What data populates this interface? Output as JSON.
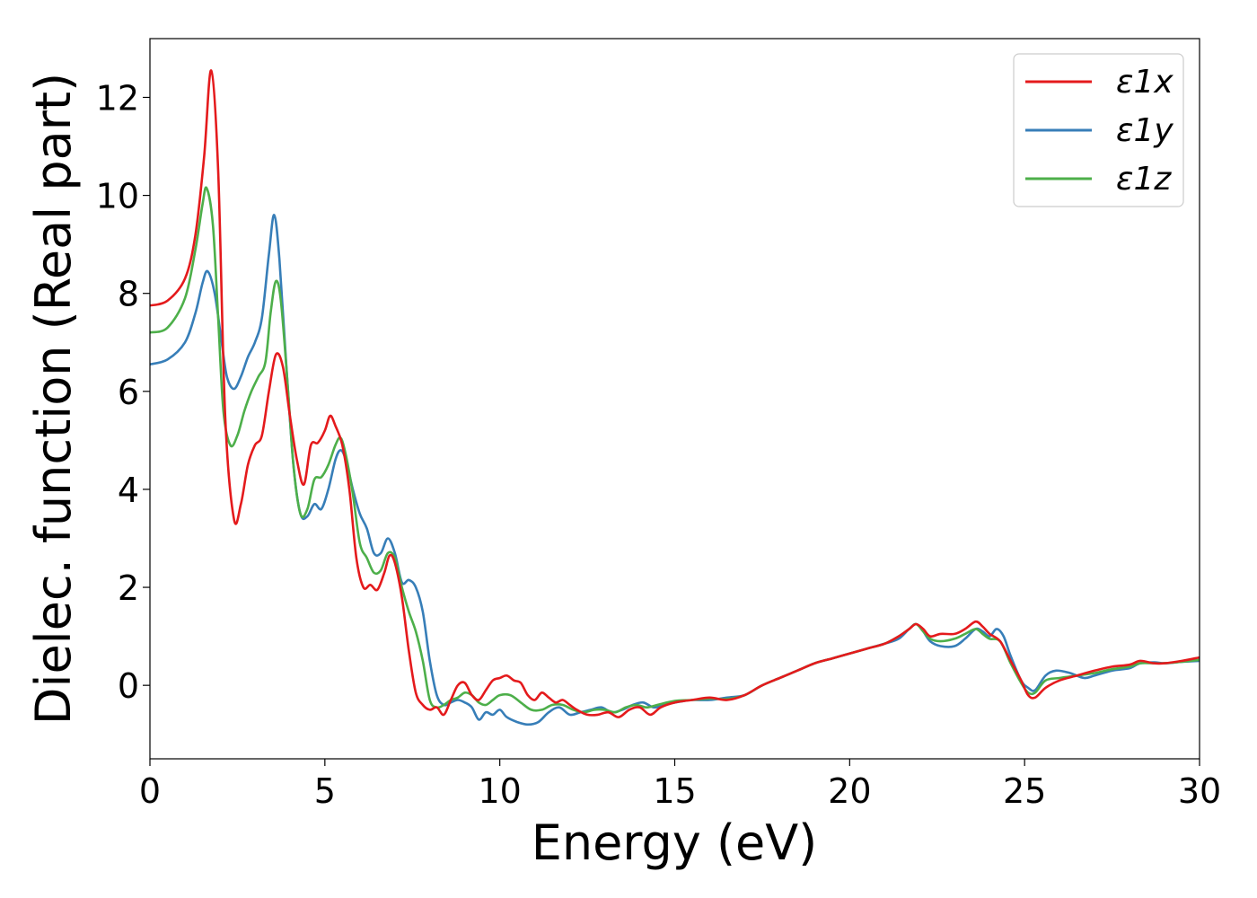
{
  "chart_data": {
    "type": "line",
    "title": "",
    "xlabel": "Energy (eV)",
    "ylabel": "Dielec. function (Real part)",
    "xlim": [
      0,
      30
    ],
    "ylim": [
      -1.5,
      13.2
    ],
    "xticks": [
      "0",
      "5",
      "10",
      "15",
      "20",
      "25",
      "30"
    ],
    "yticks": [
      "0",
      "2",
      "4",
      "6",
      "8",
      "10",
      "12"
    ],
    "grid": false,
    "legend_position": "top-right",
    "series": [
      {
        "name": "ε1x",
        "color": "#e41a1c",
        "points": [
          [
            0,
            7.75
          ],
          [
            0.5,
            7.85
          ],
          [
            1.0,
            8.3
          ],
          [
            1.3,
            9.2
          ],
          [
            1.55,
            10.8
          ],
          [
            1.75,
            12.55
          ],
          [
            1.95,
            10.5
          ],
          [
            2.15,
            5.5
          ],
          [
            2.4,
            3.4
          ],
          [
            2.6,
            3.7
          ],
          [
            2.8,
            4.5
          ],
          [
            3.0,
            4.9
          ],
          [
            3.2,
            5.1
          ],
          [
            3.4,
            6.0
          ],
          [
            3.6,
            6.75
          ],
          [
            3.8,
            6.5
          ],
          [
            4.0,
            5.5
          ],
          [
            4.2,
            4.6
          ],
          [
            4.4,
            4.1
          ],
          [
            4.6,
            4.9
          ],
          [
            4.8,
            4.95
          ],
          [
            5.0,
            5.2
          ],
          [
            5.15,
            5.5
          ],
          [
            5.3,
            5.3
          ],
          [
            5.5,
            4.9
          ],
          [
            5.7,
            4.0
          ],
          [
            5.9,
            2.6
          ],
          [
            6.1,
            2.0
          ],
          [
            6.3,
            2.05
          ],
          [
            6.5,
            1.95
          ],
          [
            6.7,
            2.3
          ],
          [
            6.85,
            2.65
          ],
          [
            7.0,
            2.5
          ],
          [
            7.2,
            1.8
          ],
          [
            7.4,
            0.7
          ],
          [
            7.6,
            -0.15
          ],
          [
            7.8,
            -0.4
          ],
          [
            8.0,
            -0.5
          ],
          [
            8.2,
            -0.45
          ],
          [
            8.4,
            -0.6
          ],
          [
            8.6,
            -0.3
          ],
          [
            8.8,
            0.0
          ],
          [
            9.0,
            0.05
          ],
          [
            9.2,
            -0.2
          ],
          [
            9.4,
            -0.3
          ],
          [
            9.6,
            -0.1
          ],
          [
            9.8,
            0.1
          ],
          [
            10.0,
            0.15
          ],
          [
            10.2,
            0.2
          ],
          [
            10.4,
            0.1
          ],
          [
            10.6,
            0.05
          ],
          [
            10.8,
            -0.2
          ],
          [
            11.0,
            -0.3
          ],
          [
            11.2,
            -0.15
          ],
          [
            11.4,
            -0.25
          ],
          [
            11.6,
            -0.35
          ],
          [
            11.8,
            -0.3
          ],
          [
            12.0,
            -0.4
          ],
          [
            12.2,
            -0.5
          ],
          [
            12.5,
            -0.6
          ],
          [
            12.8,
            -0.6
          ],
          [
            13.1,
            -0.55
          ],
          [
            13.4,
            -0.65
          ],
          [
            13.7,
            -0.5
          ],
          [
            14.0,
            -0.45
          ],
          [
            14.3,
            -0.6
          ],
          [
            14.6,
            -0.45
          ],
          [
            15.0,
            -0.35
          ],
          [
            15.5,
            -0.3
          ],
          [
            16.0,
            -0.25
          ],
          [
            16.5,
            -0.3
          ],
          [
            17.0,
            -0.2
          ],
          [
            17.5,
            0.0
          ],
          [
            18.0,
            0.15
          ],
          [
            18.5,
            0.3
          ],
          [
            19.0,
            0.45
          ],
          [
            19.5,
            0.55
          ],
          [
            20.0,
            0.65
          ],
          [
            20.5,
            0.75
          ],
          [
            21.0,
            0.85
          ],
          [
            21.4,
            1.0
          ],
          [
            21.7,
            1.15
          ],
          [
            21.9,
            1.25
          ],
          [
            22.1,
            1.15
          ],
          [
            22.3,
            1.0
          ],
          [
            22.6,
            1.05
          ],
          [
            23.0,
            1.05
          ],
          [
            23.3,
            1.15
          ],
          [
            23.6,
            1.3
          ],
          [
            23.8,
            1.2
          ],
          [
            24.0,
            1.05
          ],
          [
            24.3,
            0.9
          ],
          [
            24.6,
            0.5
          ],
          [
            24.9,
            0.1
          ],
          [
            25.1,
            -0.2
          ],
          [
            25.3,
            -0.25
          ],
          [
            25.6,
            -0.05
          ],
          [
            26.0,
            0.1
          ],
          [
            26.5,
            0.2
          ],
          [
            27.0,
            0.3
          ],
          [
            27.5,
            0.38
          ],
          [
            28.0,
            0.42
          ],
          [
            28.3,
            0.5
          ],
          [
            28.7,
            0.45
          ],
          [
            29.0,
            0.45
          ],
          [
            29.5,
            0.5
          ],
          [
            30.0,
            0.57
          ]
        ]
      },
      {
        "name": "ε1y",
        "color": "#377eb8",
        "points": [
          [
            0,
            6.55
          ],
          [
            0.5,
            6.65
          ],
          [
            1.0,
            7.0
          ],
          [
            1.3,
            7.6
          ],
          [
            1.5,
            8.2
          ],
          [
            1.65,
            8.45
          ],
          [
            1.85,
            8.0
          ],
          [
            2.05,
            7.0
          ],
          [
            2.2,
            6.3
          ],
          [
            2.4,
            6.05
          ],
          [
            2.6,
            6.3
          ],
          [
            2.8,
            6.7
          ],
          [
            3.0,
            7.0
          ],
          [
            3.2,
            7.5
          ],
          [
            3.4,
            8.8
          ],
          [
            3.55,
            9.6
          ],
          [
            3.7,
            8.7
          ],
          [
            3.9,
            6.5
          ],
          [
            4.1,
            4.5
          ],
          [
            4.3,
            3.5
          ],
          [
            4.5,
            3.45
          ],
          [
            4.7,
            3.7
          ],
          [
            4.9,
            3.6
          ],
          [
            5.1,
            4.0
          ],
          [
            5.3,
            4.6
          ],
          [
            5.45,
            4.8
          ],
          [
            5.6,
            4.6
          ],
          [
            5.8,
            4.0
          ],
          [
            6.0,
            3.5
          ],
          [
            6.2,
            3.2
          ],
          [
            6.4,
            2.7
          ],
          [
            6.6,
            2.7
          ],
          [
            6.8,
            3.0
          ],
          [
            7.0,
            2.7
          ],
          [
            7.2,
            2.1
          ],
          [
            7.4,
            2.15
          ],
          [
            7.6,
            2.0
          ],
          [
            7.8,
            1.5
          ],
          [
            8.0,
            0.5
          ],
          [
            8.2,
            -0.2
          ],
          [
            8.4,
            -0.4
          ],
          [
            8.6,
            -0.35
          ],
          [
            8.8,
            -0.3
          ],
          [
            9.0,
            -0.35
          ],
          [
            9.2,
            -0.45
          ],
          [
            9.4,
            -0.7
          ],
          [
            9.6,
            -0.55
          ],
          [
            9.8,
            -0.6
          ],
          [
            10.0,
            -0.5
          ],
          [
            10.2,
            -0.65
          ],
          [
            10.5,
            -0.75
          ],
          [
            10.8,
            -0.8
          ],
          [
            11.1,
            -0.75
          ],
          [
            11.4,
            -0.55
          ],
          [
            11.7,
            -0.45
          ],
          [
            12.0,
            -0.6
          ],
          [
            12.3,
            -0.55
          ],
          [
            12.6,
            -0.5
          ],
          [
            12.9,
            -0.45
          ],
          [
            13.2,
            -0.55
          ],
          [
            13.5,
            -0.5
          ],
          [
            13.8,
            -0.4
          ],
          [
            14.1,
            -0.35
          ],
          [
            14.4,
            -0.45
          ],
          [
            14.7,
            -0.4
          ],
          [
            15.0,
            -0.35
          ],
          [
            15.5,
            -0.3
          ],
          [
            16.0,
            -0.3
          ],
          [
            16.5,
            -0.25
          ],
          [
            17.0,
            -0.2
          ],
          [
            17.5,
            0.0
          ],
          [
            18.0,
            0.15
          ],
          [
            18.5,
            0.3
          ],
          [
            19.0,
            0.45
          ],
          [
            19.5,
            0.55
          ],
          [
            20.0,
            0.65
          ],
          [
            20.5,
            0.75
          ],
          [
            21.0,
            0.85
          ],
          [
            21.4,
            0.95
          ],
          [
            21.7,
            1.15
          ],
          [
            21.9,
            1.25
          ],
          [
            22.1,
            1.1
          ],
          [
            22.3,
            0.9
          ],
          [
            22.6,
            0.8
          ],
          [
            23.0,
            0.8
          ],
          [
            23.3,
            0.95
          ],
          [
            23.6,
            1.15
          ],
          [
            23.8,
            1.1
          ],
          [
            24.0,
            1.0
          ],
          [
            24.2,
            1.15
          ],
          [
            24.4,
            1.0
          ],
          [
            24.6,
            0.6
          ],
          [
            24.9,
            0.1
          ],
          [
            25.1,
            -0.05
          ],
          [
            25.3,
            -0.1
          ],
          [
            25.6,
            0.2
          ],
          [
            25.9,
            0.3
          ],
          [
            26.3,
            0.25
          ],
          [
            26.7,
            0.15
          ],
          [
            27.0,
            0.2
          ],
          [
            27.5,
            0.3
          ],
          [
            28.0,
            0.35
          ],
          [
            28.3,
            0.45
          ],
          [
            28.7,
            0.47
          ],
          [
            29.0,
            0.45
          ],
          [
            29.5,
            0.48
          ],
          [
            30.0,
            0.5
          ]
        ]
      },
      {
        "name": "ε1z",
        "color": "#4daf4a",
        "points": [
          [
            0,
            7.2
          ],
          [
            0.5,
            7.3
          ],
          [
            1.0,
            7.9
          ],
          [
            1.3,
            8.9
          ],
          [
            1.5,
            9.8
          ],
          [
            1.62,
            10.15
          ],
          [
            1.8,
            9.4
          ],
          [
            1.95,
            7.5
          ],
          [
            2.1,
            5.6
          ],
          [
            2.3,
            4.9
          ],
          [
            2.5,
            5.1
          ],
          [
            2.7,
            5.6
          ],
          [
            2.9,
            6.0
          ],
          [
            3.1,
            6.3
          ],
          [
            3.3,
            6.6
          ],
          [
            3.45,
            7.6
          ],
          [
            3.6,
            8.25
          ],
          [
            3.75,
            7.8
          ],
          [
            3.95,
            6.0
          ],
          [
            4.1,
            4.5
          ],
          [
            4.3,
            3.5
          ],
          [
            4.5,
            3.6
          ],
          [
            4.7,
            4.2
          ],
          [
            4.9,
            4.25
          ],
          [
            5.1,
            4.5
          ],
          [
            5.3,
            4.9
          ],
          [
            5.45,
            5.05
          ],
          [
            5.6,
            4.7
          ],
          [
            5.8,
            3.9
          ],
          [
            6.0,
            2.9
          ],
          [
            6.2,
            2.6
          ],
          [
            6.4,
            2.3
          ],
          [
            6.6,
            2.35
          ],
          [
            6.8,
            2.7
          ],
          [
            7.0,
            2.6
          ],
          [
            7.2,
            2.0
          ],
          [
            7.4,
            1.5
          ],
          [
            7.6,
            1.1
          ],
          [
            7.8,
            0.5
          ],
          [
            8.0,
            -0.3
          ],
          [
            8.2,
            -0.45
          ],
          [
            8.4,
            -0.4
          ],
          [
            8.6,
            -0.3
          ],
          [
            8.8,
            -0.25
          ],
          [
            9.0,
            -0.15
          ],
          [
            9.2,
            -0.2
          ],
          [
            9.4,
            -0.35
          ],
          [
            9.6,
            -0.4
          ],
          [
            9.8,
            -0.3
          ],
          [
            10.0,
            -0.2
          ],
          [
            10.3,
            -0.2
          ],
          [
            10.6,
            -0.35
          ],
          [
            10.9,
            -0.5
          ],
          [
            11.2,
            -0.5
          ],
          [
            11.5,
            -0.4
          ],
          [
            11.8,
            -0.4
          ],
          [
            12.1,
            -0.5
          ],
          [
            12.4,
            -0.55
          ],
          [
            12.7,
            -0.5
          ],
          [
            13.0,
            -0.5
          ],
          [
            13.3,
            -0.55
          ],
          [
            13.6,
            -0.45
          ],
          [
            13.9,
            -0.4
          ],
          [
            14.2,
            -0.45
          ],
          [
            14.5,
            -0.4
          ],
          [
            15.0,
            -0.32
          ],
          [
            15.5,
            -0.3
          ],
          [
            16.0,
            -0.27
          ],
          [
            16.5,
            -0.28
          ],
          [
            17.0,
            -0.2
          ],
          [
            17.5,
            0.0
          ],
          [
            18.0,
            0.15
          ],
          [
            18.5,
            0.3
          ],
          [
            19.0,
            0.45
          ],
          [
            19.5,
            0.55
          ],
          [
            20.0,
            0.65
          ],
          [
            20.5,
            0.75
          ],
          [
            21.0,
            0.85
          ],
          [
            21.4,
            1.0
          ],
          [
            21.7,
            1.15
          ],
          [
            21.9,
            1.25
          ],
          [
            22.1,
            1.1
          ],
          [
            22.3,
            0.95
          ],
          [
            22.6,
            0.9
          ],
          [
            23.0,
            0.95
          ],
          [
            23.3,
            1.05
          ],
          [
            23.6,
            1.15
          ],
          [
            23.8,
            1.05
          ],
          [
            24.0,
            0.95
          ],
          [
            24.3,
            0.9
          ],
          [
            24.6,
            0.45
          ],
          [
            24.9,
            0.05
          ],
          [
            25.1,
            -0.15
          ],
          [
            25.3,
            -0.15
          ],
          [
            25.6,
            0.1
          ],
          [
            26.0,
            0.15
          ],
          [
            26.5,
            0.2
          ],
          [
            27.0,
            0.25
          ],
          [
            27.5,
            0.33
          ],
          [
            28.0,
            0.38
          ],
          [
            28.3,
            0.45
          ],
          [
            28.7,
            0.45
          ],
          [
            29.0,
            0.45
          ],
          [
            29.5,
            0.48
          ],
          [
            30.0,
            0.52
          ]
        ]
      }
    ]
  }
}
